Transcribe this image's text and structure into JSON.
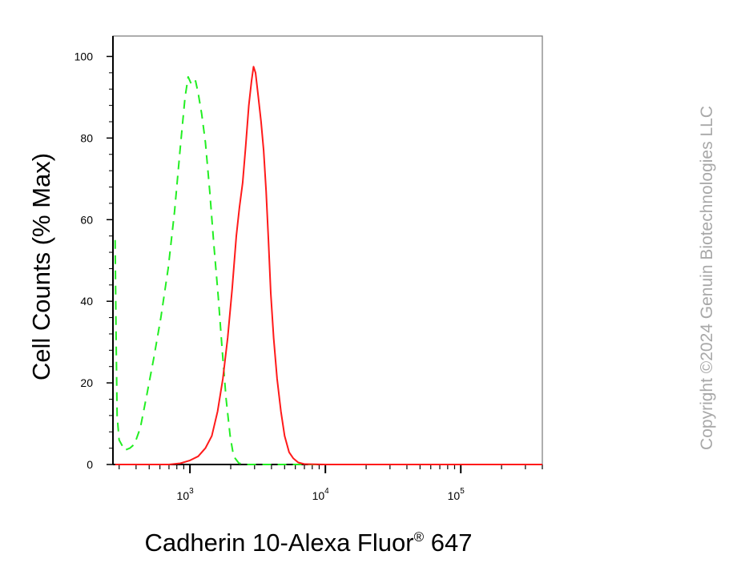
{
  "chart_data": {
    "type": "line",
    "xlabel": "Cadherin 10-Alexa Fluor",
    "xlabel_reg": "®",
    "xlabel_tail": " 647",
    "ylabel": "Cell Counts (% Max)",
    "x_scale": "log",
    "xlim": [
      270,
      400000
    ],
    "ylim": [
      0,
      105
    ],
    "y_ticks": [
      0,
      20,
      40,
      60,
      80,
      100
    ],
    "x_ticks": [
      {
        "value": 1000,
        "base": "10",
        "exp": "3"
      },
      {
        "value": 10000,
        "base": "10",
        "exp": "4"
      },
      {
        "value": 100000,
        "base": "10",
        "exp": "5"
      }
    ],
    "grid": false,
    "legend": "none",
    "series": [
      {
        "style": "dashed",
        "color": "#22ee22",
        "points": [
          [
            280,
            55
          ],
          [
            285,
            30
          ],
          [
            290,
            12
          ],
          [
            300,
            6
          ],
          [
            330,
            3.5
          ],
          [
            360,
            4
          ],
          [
            390,
            5
          ],
          [
            430,
            9
          ],
          [
            480,
            17
          ],
          [
            540,
            26
          ],
          [
            610,
            36
          ],
          [
            690,
            48
          ],
          [
            770,
            62
          ],
          [
            850,
            78
          ],
          [
            920,
            90
          ],
          [
            970,
            95
          ],
          [
            1030,
            93
          ],
          [
            1100,
            94
          ],
          [
            1150,
            91
          ],
          [
            1220,
            86
          ],
          [
            1300,
            79
          ],
          [
            1400,
            67
          ],
          [
            1500,
            54
          ],
          [
            1620,
            41
          ],
          [
            1730,
            28
          ],
          [
            1850,
            16
          ],
          [
            1980,
            7
          ],
          [
            2100,
            2
          ],
          [
            2300,
            0.3
          ],
          [
            2600,
            0
          ],
          [
            4000,
            0
          ],
          [
            20000,
            0
          ],
          [
            100000,
            0
          ],
          [
            400000,
            0
          ]
        ]
      },
      {
        "style": "solid",
        "color": "#ff1a1a",
        "points": [
          [
            280,
            0
          ],
          [
            700,
            0
          ],
          [
            850,
            0.3
          ],
          [
            1000,
            1
          ],
          [
            1150,
            2
          ],
          [
            1300,
            4
          ],
          [
            1450,
            7
          ],
          [
            1600,
            13
          ],
          [
            1750,
            21
          ],
          [
            1900,
            31
          ],
          [
            2050,
            43
          ],
          [
            2200,
            56
          ],
          [
            2320,
            63
          ],
          [
            2450,
            69
          ],
          [
            2580,
            78
          ],
          [
            2720,
            88
          ],
          [
            2850,
            94
          ],
          [
            2950,
            97.5
          ],
          [
            3050,
            96
          ],
          [
            3200,
            90
          ],
          [
            3350,
            84
          ],
          [
            3500,
            77
          ],
          [
            3650,
            67
          ],
          [
            3800,
            55
          ],
          [
            3950,
            42
          ],
          [
            4150,
            31
          ],
          [
            4400,
            21
          ],
          [
            4700,
            13
          ],
          [
            5000,
            7
          ],
          [
            5400,
            3
          ],
          [
            5800,
            1.5
          ],
          [
            6300,
            0.5
          ],
          [
            7000,
            0.1
          ],
          [
            10000,
            0
          ],
          [
            100000,
            0
          ],
          [
            400000,
            0
          ]
        ]
      }
    ]
  },
  "watermark": "Copyright ©2024 Genuin Biotechnologies LLC"
}
